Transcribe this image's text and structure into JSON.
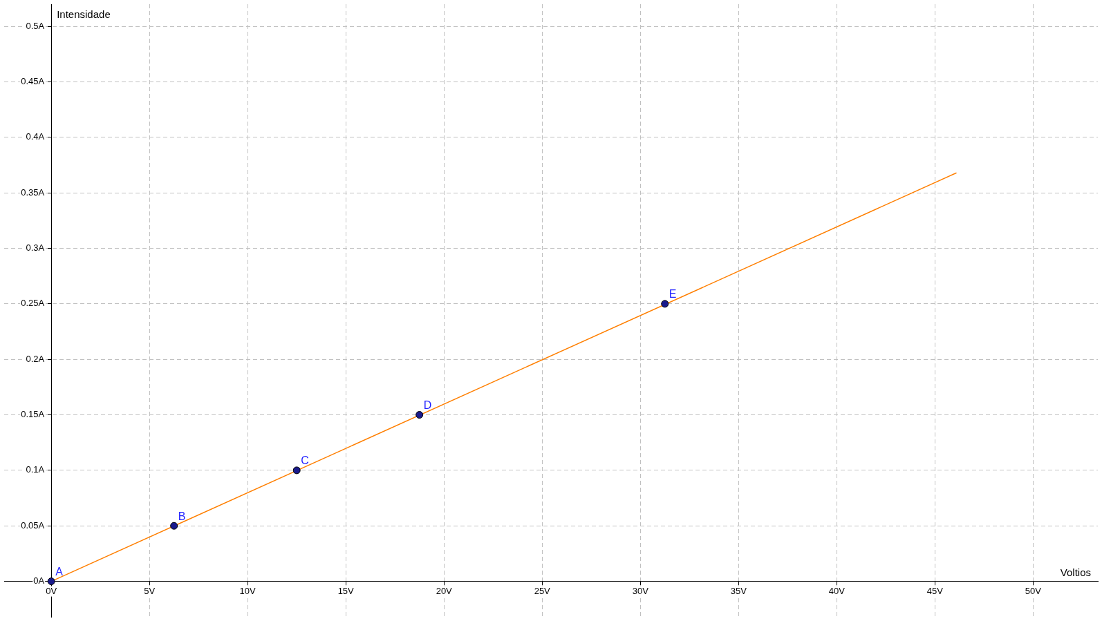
{
  "chart_data": {
    "type": "scatter",
    "xlabel": "Voltios",
    "ylabel": "Intensidade",
    "xlim": [
      -2.4,
      53.3
    ],
    "ylim": [
      -0.032,
      0.52
    ],
    "xticks": [
      {
        "value": 0,
        "label": "0V"
      },
      {
        "value": 5,
        "label": "5V"
      },
      {
        "value": 10,
        "label": "10V"
      },
      {
        "value": 15,
        "label": "15V"
      },
      {
        "value": 20,
        "label": "20V"
      },
      {
        "value": 25,
        "label": "25V"
      },
      {
        "value": 30,
        "label": "30V"
      },
      {
        "value": 35,
        "label": "35V"
      },
      {
        "value": 40,
        "label": "40V"
      },
      {
        "value": 45,
        "label": "45V"
      },
      {
        "value": 50,
        "label": "50V"
      }
    ],
    "yticks": [
      {
        "value": 0,
        "label": "0A"
      },
      {
        "value": 0.05,
        "label": "0.05A"
      },
      {
        "value": 0.1,
        "label": "0.1A"
      },
      {
        "value": 0.15,
        "label": "0.15A"
      },
      {
        "value": 0.2,
        "label": "0.2A"
      },
      {
        "value": 0.25,
        "label": "0.25A"
      },
      {
        "value": 0.3,
        "label": "0.3A"
      },
      {
        "value": 0.35,
        "label": "0.35A"
      },
      {
        "value": 0.4,
        "label": "0.4A"
      },
      {
        "value": 0.45,
        "label": "0.45A"
      },
      {
        "value": 0.5,
        "label": "0.5A"
      }
    ],
    "grid": true,
    "legend": false,
    "marker": "circle",
    "series": [
      {
        "type": "line",
        "marker": "none",
        "color": "#ff7f00",
        "x": [
          0,
          46.1
        ],
        "values": [
          0,
          0.368
        ]
      },
      {
        "type": "scatter",
        "color": "#1a1a8c",
        "x": [
          0,
          6.25,
          12.5,
          18.75,
          31.25
        ],
        "values": [
          0,
          0.05,
          0.1,
          0.15,
          0.25
        ]
      }
    ],
    "annotations": [
      {
        "text": "A",
        "x": 0,
        "y": 0
      },
      {
        "text": "B",
        "x": 6.25,
        "y": 0.05
      },
      {
        "text": "C",
        "x": 12.5,
        "y": 0.1
      },
      {
        "text": "D",
        "x": 18.75,
        "y": 0.15
      },
      {
        "text": "E",
        "x": 31.25,
        "y": 0.25
      }
    ]
  }
}
